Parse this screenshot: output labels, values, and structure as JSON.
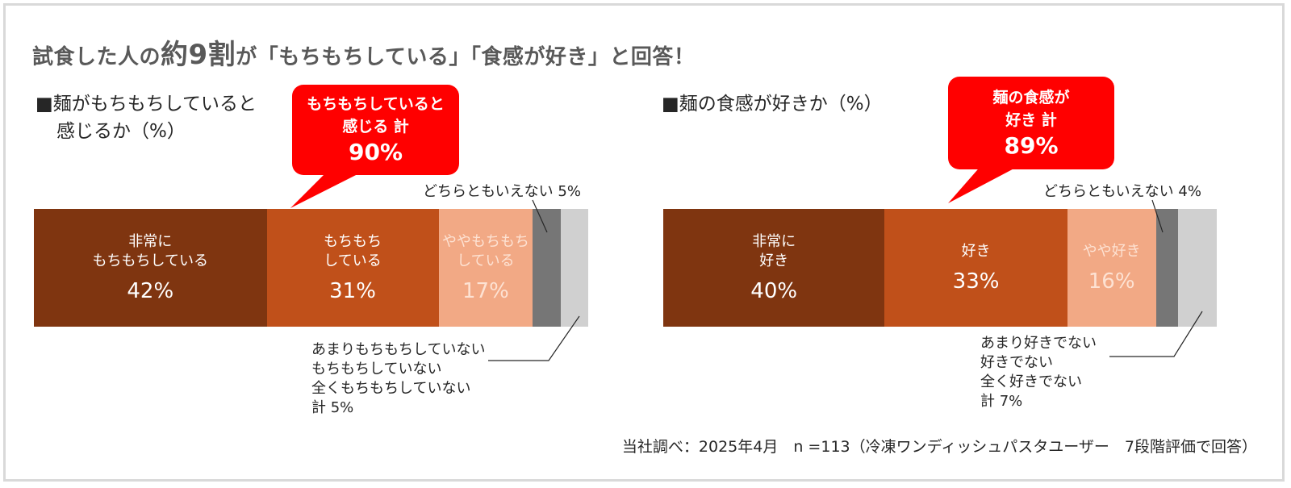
{
  "title": {
    "pre": "試食した人の",
    "big": "約9割",
    "post": "が「もちもちしている」「食感が好き」と回答！"
  },
  "colors": [
    "#7f3510",
    "#c0501a",
    "#f2a985",
    "#767676",
    "#d0d0d0"
  ],
  "chart_data": [
    {
      "type": "bar",
      "orientation": "horizontal-stacked-100",
      "title_line1": "■麺がもちもちしていると",
      "title_line2": "感じるか（%）",
      "segments": [
        {
          "label": "非常に\nもちもちしている",
          "value": 42,
          "value_label": "42%"
        },
        {
          "label": "もちもち\nしている",
          "value": 31,
          "value_label": "31%"
        },
        {
          "label": "ややもちもち\nしている",
          "value": 17,
          "value_label": "17%"
        },
        {
          "label": "どちらともいえない",
          "value": 5,
          "value_label": "5%"
        },
        {
          "label": "あまりもちもちしていない / もちもちしていない / 全くもちもちしていない",
          "value": 5,
          "value_label": "5%"
        }
      ],
      "callout_line1": "もちもちしていると",
      "callout_line2": "感じる 計",
      "callout_value": "90%",
      "neutral_note": "どちらともいえない 5%",
      "negative_note": "あまりもちもちしていない\nもちもちしていない\n全くもちもちしていない\n計 5%"
    },
    {
      "type": "bar",
      "orientation": "horizontal-stacked-100",
      "title_line1": "■麺の食感が好きか（%）",
      "title_line2": "",
      "segments": [
        {
          "label": "非常に\n好き",
          "value": 40,
          "value_label": "40%"
        },
        {
          "label": "好き",
          "value": 33,
          "value_label": "33%"
        },
        {
          "label": "やや好き",
          "value": 16,
          "value_label": "16%"
        },
        {
          "label": "どちらともいえない",
          "value": 4,
          "value_label": "4%"
        },
        {
          "label": "あまり好きでない / 好きでない / 全く好きでない",
          "value": 7,
          "value_label": "7%"
        }
      ],
      "callout_line1": "麺の食感が",
      "callout_line2": "好き 計",
      "callout_value": "89%",
      "neutral_note": "どちらともいえない 4%",
      "negative_note": "あまり好きでない\n好きでない\n全く好きでない\n計 7%"
    }
  ],
  "source": "当社調べ：2025年4月　n =113（冷凍ワンディッシュパスタユーザー　7段階評価で回答）"
}
